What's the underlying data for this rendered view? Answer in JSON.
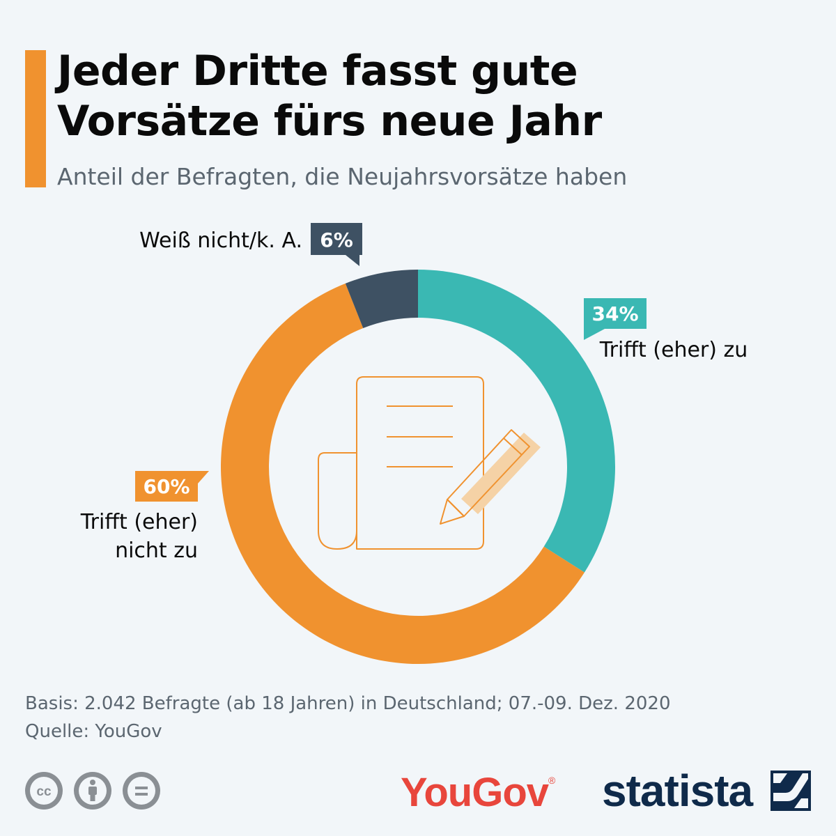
{
  "header": {
    "title_line1": "Jeder Dritte fasst gute",
    "title_line2": "Vorsätze fürs neue Jahr",
    "subtitle": "Anteil der Befragten, die Neujahrsvorsätze haben"
  },
  "chart_data": {
    "type": "pie",
    "variant": "donut",
    "title": "Jeder Dritte fasst gute Vorsätze fürs neue Jahr",
    "subtitle": "Anteil der Befragten, die Neujahrsvorsätze haben",
    "unit": "%",
    "slices": [
      {
        "label": "Trifft (eher) zu",
        "label_lines": [
          "Trifft (eher) zu"
        ],
        "value": 34,
        "value_label": "34%",
        "color": "#3ab8b3"
      },
      {
        "label": "Trifft (eher) nicht zu",
        "label_lines": [
          "Trifft (eher)",
          "nicht zu"
        ],
        "value": 60,
        "value_label": "60%",
        "color": "#f0922f"
      },
      {
        "label": "Weiß nicht/k. A.",
        "label_lines": [
          "Weiß nicht/k. A."
        ],
        "value": 6,
        "value_label": "6%",
        "color": "#3e5163"
      }
    ],
    "center_icon": "document-pencil-icon"
  },
  "footer": {
    "basis": "Basis: 2.042 Befragte (ab 18 Jahren) in Deutschland; 07.-09. Dez. 2020",
    "source": "Quelle: YouGov"
  },
  "logos": {
    "yougov": "YouGov",
    "yougov_mark": "®",
    "statista": "statista"
  },
  "license_icons": [
    "cc-icon",
    "attribution-icon",
    "no-derivatives-icon"
  ],
  "colors": {
    "background": "#f2f6f9",
    "accent": "#f0922f",
    "teal": "#3ab8b3",
    "navy": "#3e5163",
    "yougov_red": "#e8463c",
    "statista_navy": "#0f2a4a",
    "text_dark": "#0a0a0a",
    "text_muted": "#5b6670"
  }
}
